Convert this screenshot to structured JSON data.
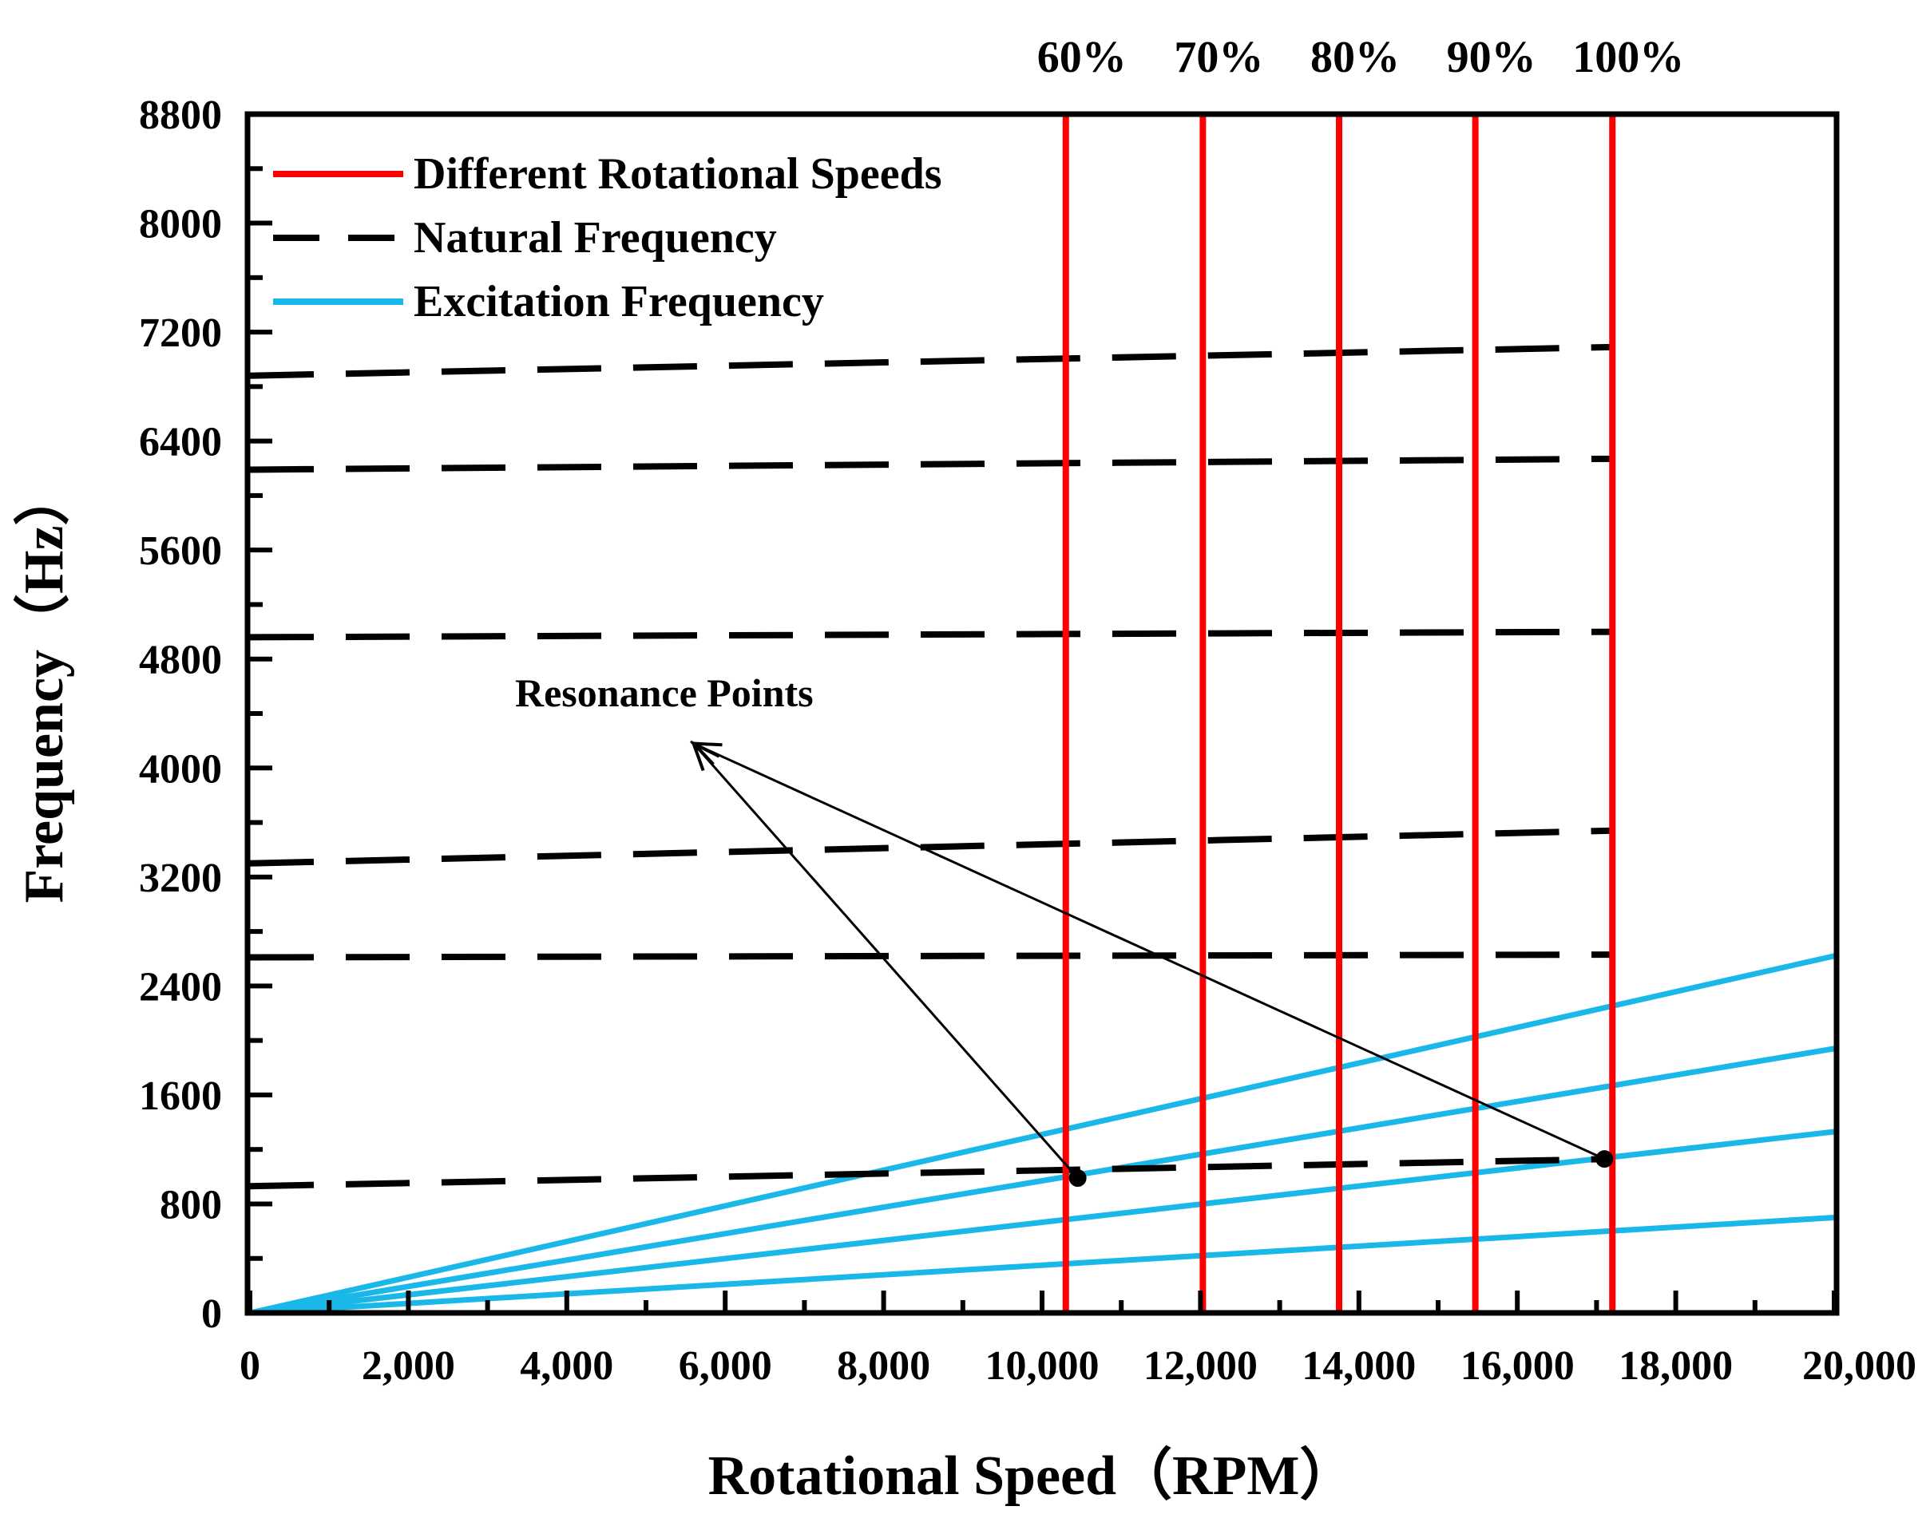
{
  "chart_data": {
    "type": "line",
    "xlabel": "Rotational Speed（RPM）",
    "ylabel": "Frequency（Hz）",
    "xlim": [
      0,
      20000
    ],
    "ylim": [
      0,
      8800
    ],
    "x_ticks": [
      0,
      2000,
      4000,
      6000,
      8000,
      10000,
      12000,
      14000,
      16000,
      18000,
      20000
    ],
    "x_tick_labels": [
      "0",
      "2,000",
      "4,000",
      "6,000",
      "8,000",
      "10,000",
      "12,000",
      "14,000",
      "16,000",
      "18,000",
      "20,000"
    ],
    "y_ticks": [
      0,
      800,
      1600,
      2400,
      3200,
      4000,
      4800,
      5600,
      6400,
      7200,
      8000,
      8800
    ],
    "y_tick_labels": [
      "0",
      "800",
      "1600",
      "2400",
      "3200",
      "4000",
      "4800",
      "5600",
      "6400",
      "7200",
      "8000",
      "8800"
    ],
    "legend": [
      {
        "label": "Different Rotational Speeds",
        "color": "#ff0000",
        "style": "solid"
      },
      {
        "label": "Natural Frequency",
        "color": "#000000",
        "style": "dashed"
      },
      {
        "label": "Excitation Frequency",
        "color": "#1ab8e8",
        "style": "solid"
      }
    ],
    "legend_position": "top-left",
    "speed_lines": [
      {
        "label": "60%",
        "x": 10300
      },
      {
        "label": "70%",
        "x": 12030
      },
      {
        "label": "80%",
        "x": 13750
      },
      {
        "label": "90%",
        "x": 15470
      },
      {
        "label": "100%",
        "x": 17200
      }
    ],
    "natural_frequency_series": [
      {
        "name": "Natural Frequency mode 1",
        "x": [
          0,
          17200
        ],
        "y": [
          930,
          1130
        ]
      },
      {
        "name": "Natural Frequency mode 2",
        "x": [
          0,
          17200
        ],
        "y": [
          2610,
          2630
        ]
      },
      {
        "name": "Natural Frequency mode 3",
        "x": [
          0,
          17200
        ],
        "y": [
          3300,
          3540
        ]
      },
      {
        "name": "Natural Frequency mode 4",
        "x": [
          0,
          17200
        ],
        "y": [
          4960,
          5000
        ]
      },
      {
        "name": "Natural Frequency mode 5",
        "x": [
          0,
          17200
        ],
        "y": [
          6190,
          6270
        ]
      },
      {
        "name": "Natural Frequency mode 6",
        "x": [
          0,
          17200
        ],
        "y": [
          6880,
          7090
        ]
      }
    ],
    "excitation_series": [
      {
        "name": "Excitation Frequency 1",
        "x": [
          0,
          20000
        ],
        "y": [
          0,
          2620
        ]
      },
      {
        "name": "Excitation Frequency 2",
        "x": [
          0,
          20000
        ],
        "y": [
          0,
          1940
        ]
      },
      {
        "name": "Excitation Frequency 3",
        "x": [
          0,
          20000
        ],
        "y": [
          0,
          1330
        ]
      },
      {
        "name": "Excitation Frequency 4",
        "x": [
          0,
          20000
        ],
        "y": [
          0,
          700
        ]
      }
    ],
    "resonance_points": [
      {
        "x": 10450,
        "y": 990
      },
      {
        "x": 17100,
        "y": 1130
      }
    ],
    "annotation": {
      "text": "Resonance Points",
      "arrow_tip": {
        "x": 5600,
        "y": 4180
      }
    }
  }
}
